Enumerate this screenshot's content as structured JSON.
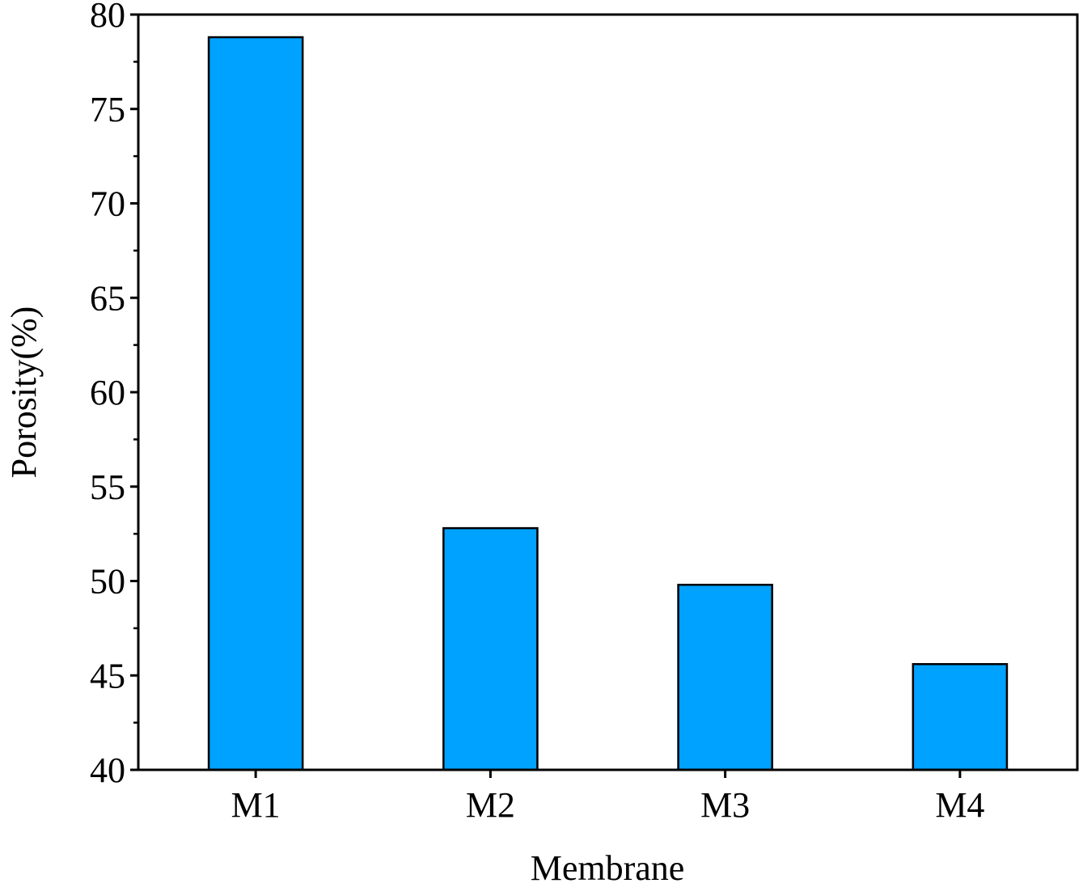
{
  "chart_data": {
    "type": "bar",
    "categories": [
      "M1",
      "M2",
      "M3",
      "M4"
    ],
    "values": [
      78.8,
      52.8,
      49.8,
      45.6
    ],
    "xlabel": "Membrane",
    "ylabel": "Porosity(%)",
    "ylim": [
      40,
      80
    ],
    "yticks": [
      40,
      45,
      50,
      55,
      60,
      65,
      70,
      75,
      80
    ],
    "ytick_labels": [
      "40",
      "45",
      "50",
      "55",
      "60",
      "65",
      "70",
      "75",
      "80"
    ],
    "y_minor_step": 2.5,
    "bar_color": "#00A2FF",
    "bar_edge_color": "#000000",
    "grid": false,
    "legend": "none"
  }
}
